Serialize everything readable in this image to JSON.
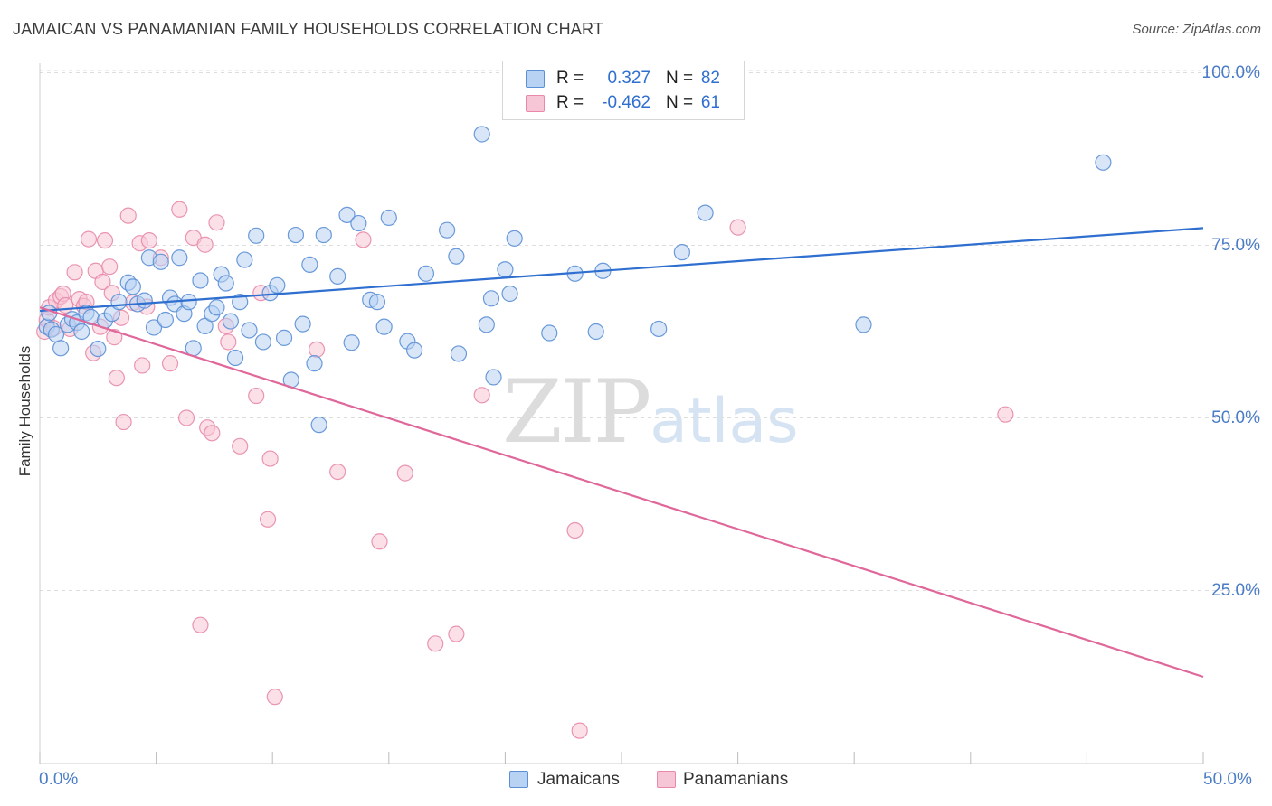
{
  "header": {
    "title": "JAMAICAN VS PANAMANIAN FAMILY HOUSEHOLDS CORRELATION CHART",
    "source": "Source: ZipAtlas.com"
  },
  "legend": {
    "row1": {
      "r_label": "R =",
      "r_value": "0.327",
      "n_label": "N =",
      "n_value": "82"
    },
    "row2": {
      "r_label": "R =",
      "r_value": "-0.462",
      "n_label": "N =",
      "n_value": "61"
    }
  },
  "bottom_legend": {
    "series1": "Jamaicans",
    "series2": "Panamanians"
  },
  "watermark": {
    "zip": "ZIP",
    "atlas": "atlas"
  },
  "colors": {
    "blue_fill": "#b8d2f3",
    "blue_stroke": "#5b8fd6",
    "blue_line": "#2f6fd0",
    "pink_fill": "#f7c6d6",
    "pink_stroke": "#e889a9",
    "pink_line": "#e0679a",
    "grid": "#dddddd",
    "tick_text": "#4a7cc7"
  },
  "chart_data": {
    "type": "scatter",
    "title": "JAMAICAN VS PANAMANIAN FAMILY HOUSEHOLDS CORRELATION CHART",
    "xlabel": "",
    "ylabel": "Family Households",
    "xlim": [
      0,
      50
    ],
    "ylim": [
      0,
      105
    ],
    "x_tick_labels": [
      "0.0%",
      "50.0%"
    ],
    "y_ticks": [
      25,
      50,
      75,
      100
    ],
    "y_tick_labels": [
      "25.0%",
      "50.0%",
      "75.0%",
      "100.0%"
    ],
    "grid": true,
    "legend_position": "top-center",
    "series": [
      {
        "name": "Jamaicans",
        "color": "#5b8fd6",
        "r": 0.327,
        "n": 82,
        "trend": {
          "x": [
            0,
            50
          ],
          "y": [
            65.5,
            77.5
          ]
        },
        "points": [
          [
            0.3,
            63.2
          ],
          [
            0.5,
            62.8
          ],
          [
            0.7,
            62.1
          ],
          [
            0.9,
            60.1
          ],
          [
            1.2,
            63.5
          ],
          [
            1.4,
            64.3
          ],
          [
            1.6,
            63.8
          ],
          [
            1.8,
            62.5
          ],
          [
            2.0,
            65.2
          ],
          [
            2.2,
            64.6
          ],
          [
            2.5,
            60.0
          ],
          [
            2.8,
            64.1
          ],
          [
            3.1,
            65.1
          ],
          [
            3.4,
            66.8
          ],
          [
            3.8,
            69.6
          ],
          [
            4.0,
            69.0
          ],
          [
            4.2,
            66.5
          ],
          [
            4.5,
            67.0
          ],
          [
            4.7,
            73.2
          ],
          [
            4.9,
            63.1
          ],
          [
            5.2,
            72.6
          ],
          [
            5.4,
            64.2
          ],
          [
            5.6,
            67.4
          ],
          [
            5.8,
            66.5
          ],
          [
            6.0,
            73.2
          ],
          [
            6.2,
            65.1
          ],
          [
            6.4,
            66.8
          ],
          [
            6.6,
            60.1
          ],
          [
            6.9,
            69.9
          ],
          [
            7.1,
            63.3
          ],
          [
            7.4,
            65.1
          ],
          [
            7.6,
            66.0
          ],
          [
            7.8,
            70.8
          ],
          [
            8.0,
            69.5
          ],
          [
            8.2,
            64.0
          ],
          [
            8.4,
            58.7
          ],
          [
            8.6,
            66.8
          ],
          [
            8.8,
            72.9
          ],
          [
            9.0,
            62.7
          ],
          [
            9.3,
            76.4
          ],
          [
            9.6,
            61.0
          ],
          [
            9.9,
            68.1
          ],
          [
            10.2,
            69.2
          ],
          [
            10.5,
            61.6
          ],
          [
            10.8,
            55.5
          ],
          [
            11.0,
            76.5
          ],
          [
            11.3,
            63.6
          ],
          [
            11.6,
            72.2
          ],
          [
            11.8,
            57.9
          ],
          [
            12.0,
            49.0
          ],
          [
            12.2,
            76.5
          ],
          [
            12.8,
            70.5
          ],
          [
            13.2,
            79.4
          ],
          [
            13.4,
            60.9
          ],
          [
            13.7,
            78.2
          ],
          [
            14.2,
            67.1
          ],
          [
            14.5,
            66.8
          ],
          [
            14.8,
            63.2
          ],
          [
            15.0,
            79.0
          ],
          [
            15.8,
            61.1
          ],
          [
            16.1,
            59.8
          ],
          [
            16.6,
            70.9
          ],
          [
            17.5,
            77.2
          ],
          [
            17.9,
            73.4
          ],
          [
            18.0,
            59.3
          ],
          [
            19.0,
            91.1
          ],
          [
            19.2,
            63.5
          ],
          [
            19.4,
            67.3
          ],
          [
            19.5,
            55.9
          ],
          [
            20.0,
            71.5
          ],
          [
            20.2,
            68.0
          ],
          [
            20.4,
            76.0
          ],
          [
            21.9,
            62.3
          ],
          [
            23.0,
            70.9
          ],
          [
            23.9,
            62.5
          ],
          [
            24.2,
            71.3
          ],
          [
            26.6,
            62.9
          ],
          [
            27.6,
            74.0
          ],
          [
            28.6,
            79.7
          ],
          [
            35.4,
            63.5
          ],
          [
            45.7,
            87.0
          ],
          [
            0.4,
            65.2
          ]
        ]
      },
      {
        "name": "Panamanians",
        "color": "#e889a9",
        "r": -0.462,
        "n": 61,
        "trend": {
          "x": [
            0,
            50
          ],
          "y": [
            66.0,
            12.5
          ]
        },
        "points": [
          [
            0.2,
            62.5
          ],
          [
            0.3,
            64.2
          ],
          [
            0.4,
            66.0
          ],
          [
            0.6,
            63.0
          ],
          [
            0.7,
            67.0
          ],
          [
            0.9,
            67.6
          ],
          [
            1.0,
            68.0
          ],
          [
            1.1,
            66.3
          ],
          [
            1.3,
            62.9
          ],
          [
            1.5,
            71.1
          ],
          [
            1.7,
            67.2
          ],
          [
            1.9,
            66.2
          ],
          [
            2.0,
            66.8
          ],
          [
            2.1,
            75.9
          ],
          [
            2.3,
            59.4
          ],
          [
            2.4,
            71.3
          ],
          [
            2.6,
            63.2
          ],
          [
            2.7,
            69.7
          ],
          [
            2.8,
            75.7
          ],
          [
            3.0,
            71.9
          ],
          [
            3.1,
            68.1
          ],
          [
            3.2,
            61.7
          ],
          [
            3.3,
            55.8
          ],
          [
            3.5,
            64.5
          ],
          [
            3.6,
            49.4
          ],
          [
            3.8,
            79.3
          ],
          [
            4.0,
            66.7
          ],
          [
            4.3,
            75.3
          ],
          [
            4.4,
            57.6
          ],
          [
            4.6,
            66.1
          ],
          [
            4.7,
            75.7
          ],
          [
            5.2,
            73.2
          ],
          [
            5.6,
            57.9
          ],
          [
            6.0,
            80.2
          ],
          [
            6.3,
            50.0
          ],
          [
            6.6,
            76.1
          ],
          [
            6.9,
            20.0
          ],
          [
            7.1,
            75.1
          ],
          [
            7.2,
            48.6
          ],
          [
            7.4,
            47.8
          ],
          [
            7.6,
            78.3
          ],
          [
            8.0,
            63.3
          ],
          [
            8.1,
            61.0
          ],
          [
            8.6,
            45.9
          ],
          [
            9.3,
            53.2
          ],
          [
            9.5,
            68.1
          ],
          [
            9.8,
            35.3
          ],
          [
            9.9,
            44.1
          ],
          [
            10.1,
            9.6
          ],
          [
            11.9,
            59.9
          ],
          [
            12.8,
            42.2
          ],
          [
            13.9,
            75.8
          ],
          [
            14.6,
            32.1
          ],
          [
            15.7,
            42.0
          ],
          [
            17.0,
            17.3
          ],
          [
            17.9,
            18.7
          ],
          [
            19.0,
            53.3
          ],
          [
            23.0,
            33.7
          ],
          [
            23.2,
            4.7
          ],
          [
            30.0,
            77.6
          ],
          [
            41.5,
            50.5
          ]
        ]
      }
    ]
  }
}
